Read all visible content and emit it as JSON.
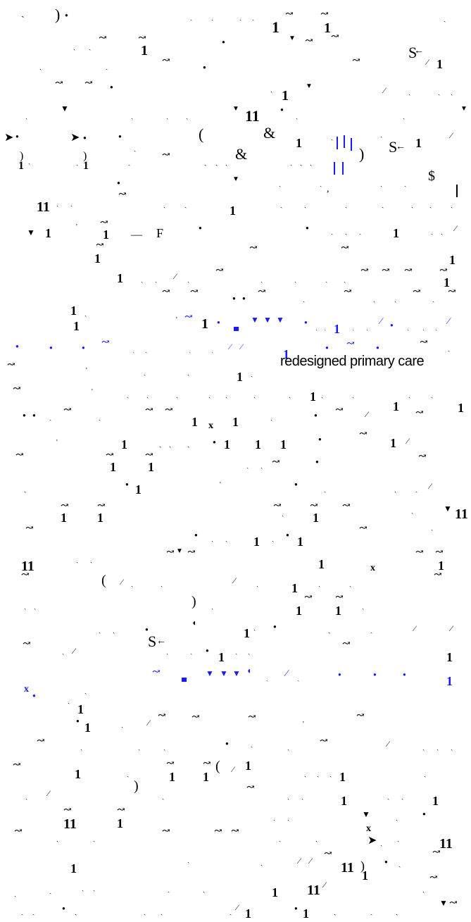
{
  "document": {
    "visible_phrase": "redesigned primary care",
    "colors": {
      "text": "#000000",
      "link": "#1a1aff",
      "background": "#ffffff"
    }
  }
}
